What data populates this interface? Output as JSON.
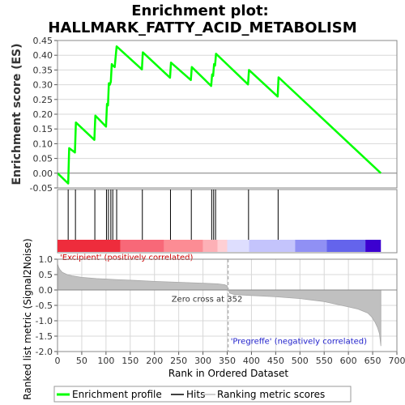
{
  "chart_data": {
    "title_lines": [
      "Enrichment plot:",
      "HALLMARK_FATTY_ACID_METABOLISM"
    ],
    "panels": [
      {
        "name": "enrichment",
        "type": "line",
        "ylabel": "Enrichment score (ES)",
        "ylim": [
          -0.05,
          0.45
        ],
        "yticks": [
          "0.45",
          "0.40",
          "0.35",
          "0.30",
          "0.25",
          "0.20",
          "0.15",
          "0.10",
          "0.05",
          "0.00",
          "-0.05"
        ],
        "ytick_values": [
          0.45,
          0.4,
          0.35,
          0.3,
          0.25,
          0.2,
          0.15,
          0.1,
          0.05,
          0.0,
          -0.05
        ],
        "grid": true,
        "series": [
          {
            "name": "Enrichment profile",
            "color": "#00ff00",
            "x": [
              0,
              22,
              24,
              36,
              38,
              76,
              78,
              100,
              102,
              104,
              106,
              108,
              110,
              112,
              114,
              118,
              122,
              174,
              176,
              232,
              234,
              275,
              277,
              317,
              319,
              321,
              323,
              325,
              327,
              393,
              395,
              454,
              456,
              667
            ],
            "y": [
              0.0,
              -0.035,
              0.085,
              0.07,
              0.172,
              0.113,
              0.195,
              0.158,
              0.235,
              0.23,
              0.305,
              0.3,
              0.31,
              0.37,
              0.365,
              0.36,
              0.43,
              0.352,
              0.41,
              0.324,
              0.375,
              0.316,
              0.36,
              0.296,
              0.335,
              0.33,
              0.37,
              0.365,
              0.405,
              0.301,
              0.35,
              0.26,
              0.325,
              0.0
            ]
          }
        ]
      },
      {
        "name": "hits",
        "hit_positions": [
          22,
          37,
          77,
          101,
          105,
          110,
          114,
          122,
          175,
          233,
          276,
          318,
          322,
          326,
          394,
          455
        ]
      },
      {
        "name": "ranked-list",
        "type": "area",
        "ylabel": "Ranked list metric (Signal2Noise)",
        "xlabel": "Rank in Ordered Dataset",
        "ylim": [
          -2.0,
          1.0
        ],
        "yticks": [
          "1.0",
          "0.5",
          "0.0",
          "-0.5",
          "-1.0",
          "-1.5",
          "-2.0"
        ],
        "ytick_values": [
          1.0,
          0.5,
          0.0,
          -0.5,
          -1.0,
          -1.5,
          -2.0
        ],
        "xlim": [
          0,
          700
        ],
        "xticks": [
          "0",
          "50",
          "100",
          "150",
          "200",
          "250",
          "300",
          "350",
          "400",
          "450",
          "500",
          "550",
          "600",
          "650",
          "700"
        ],
        "xtick_values": [
          0,
          50,
          100,
          150,
          200,
          250,
          300,
          350,
          400,
          450,
          500,
          550,
          600,
          650,
          700
        ],
        "metric_curve": {
          "x": [
            0,
            2,
            5,
            10,
            20,
            30,
            50,
            80,
            120,
            160,
            200,
            250,
            300,
            330,
            345,
            350,
            352,
            355,
            365,
            400,
            450,
            500,
            550,
            600,
            620,
            640,
            648,
            655,
            660,
            664,
            667
          ],
          "y": [
            0.85,
            0.75,
            0.66,
            0.57,
            0.5,
            0.46,
            0.41,
            0.37,
            0.34,
            0.31,
            0.28,
            0.25,
            0.22,
            0.2,
            0.17,
            0.13,
            0.0,
            -0.1,
            -0.15,
            -0.18,
            -0.22,
            -0.28,
            -0.38,
            -0.55,
            -0.62,
            -0.75,
            -0.88,
            -1.05,
            -1.22,
            -1.42,
            -1.82
          ]
        },
        "zero_cross": 352,
        "annotations": {
          "positive": "'Excipient' (positively correlated)",
          "negative": "'Pregreffe' (negatively correlated)",
          "zero_cross": "Zero cross at 352"
        }
      }
    ],
    "heat_segments": [
      {
        "x0": 0,
        "x1": 130,
        "color": "#ee2c3c"
      },
      {
        "x0": 130,
        "x1": 220,
        "color": "#f86878"
      },
      {
        "x0": 220,
        "x1": 300,
        "color": "#fc8c94"
      },
      {
        "x0": 300,
        "x1": 330,
        "color": "#fdb0b6"
      },
      {
        "x0": 330,
        "x1": 350,
        "color": "#fecfd4"
      },
      {
        "x0": 350,
        "x1": 395,
        "color": "#dedefe"
      },
      {
        "x0": 395,
        "x1": 490,
        "color": "#c4c4fc"
      },
      {
        "x0": 490,
        "x1": 555,
        "color": "#9090f4"
      },
      {
        "x0": 555,
        "x1": 635,
        "color": "#6464ec"
      },
      {
        "x0": 635,
        "x1": 667,
        "color": "#3c00d0"
      }
    ],
    "legend": [
      {
        "label": "Enrichment profile",
        "color": "#00ff00"
      },
      {
        "label": "Hits",
        "color": "#000000"
      },
      {
        "label": "Ranking metric scores",
        "color": "#c0c0c0"
      }
    ],
    "colors": {
      "profile": "#00ff00",
      "metric_fill": "#c0c0c0",
      "positive_text": "#cc0000",
      "negative_text": "#2222cc",
      "grid": "#d8d8d8"
    }
  }
}
